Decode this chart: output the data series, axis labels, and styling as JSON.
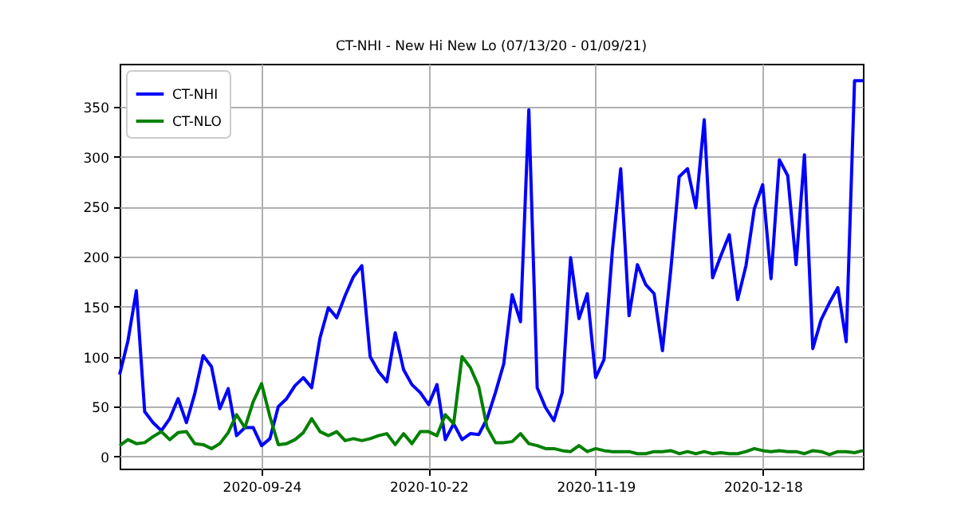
{
  "chart_data": {
    "type": "line",
    "title": "CT-NHI - New Hi New Lo (07/13/20 - 01/09/21)",
    "categories": [
      null,
      null,
      null,
      null,
      null,
      null,
      null,
      null,
      null,
      null,
      null,
      null,
      null,
      null,
      null,
      null,
      null,
      "2020-09-24",
      null,
      null,
      null,
      null,
      null,
      null,
      null,
      null,
      null,
      null,
      null,
      null,
      null,
      null,
      null,
      null,
      null,
      null,
      null,
      "2020-10-22",
      null,
      null,
      null,
      null,
      null,
      null,
      null,
      null,
      null,
      null,
      null,
      null,
      null,
      null,
      null,
      null,
      null,
      null,
      null,
      "2020-11-19",
      null,
      null,
      null,
      null,
      null,
      null,
      null,
      null,
      null,
      null,
      null,
      null,
      null,
      null,
      null,
      null,
      null,
      null,
      null,
      "2020-12-18",
      null,
      null,
      null,
      null,
      null,
      null,
      null,
      null,
      null,
      null,
      null,
      null
    ],
    "series": [
      {
        "name": "CT-NHI",
        "color": "#0000ff",
        "values": [
          82,
          116,
          166,
          45,
          34,
          26,
          38,
          58,
          34,
          63,
          101,
          90,
          48,
          68,
          21,
          29,
          29,
          11,
          18,
          50,
          58,
          71,
          79,
          69,
          119,
          149,
          139,
          161,
          180,
          191,
          100,
          85,
          75,
          124,
          87,
          72,
          64,
          52,
          72,
          17,
          33,
          17,
          23,
          22,
          38,
          64,
          93,
          162,
          135,
          347,
          69,
          49,
          36,
          64,
          199,
          138,
          163,
          79,
          97,
          206,
          288,
          141,
          192,
          172,
          163,
          106,
          187,
          280,
          288,
          249,
          337,
          179,
          201,
          222,
          157,
          191,
          248,
          272,
          178,
          297,
          281,
          192,
          302,
          108,
          137,
          154,
          169,
          115,
          376,
          376
        ]
      },
      {
        "name": "CT-NLO",
        "color": "#008000",
        "values": [
          11,
          17,
          13,
          14,
          20,
          25,
          17,
          24,
          25,
          13,
          12,
          8,
          13,
          24,
          42,
          29,
          55,
          73,
          40,
          12,
          13,
          17,
          24,
          38,
          25,
          21,
          25,
          16,
          18,
          16,
          18,
          21,
          23,
          12,
          23,
          13,
          25,
          25,
          21,
          42,
          33,
          100,
          89,
          70,
          29,
          14,
          14,
          15,
          23,
          13,
          11,
          8,
          8,
          6,
          5,
          11,
          5,
          8,
          6,
          5,
          5,
          5,
          3,
          3,
          5,
          5,
          6,
          3,
          5,
          3,
          5,
          3,
          4,
          3,
          3,
          5,
          8,
          6,
          5,
          6,
          5,
          5,
          3,
          6,
          5,
          2,
          5,
          5,
          4,
          6
        ]
      }
    ],
    "ylim": [
      -12,
      393
    ],
    "yticks": [
      0,
      50,
      100,
      150,
      200,
      250,
      300,
      350
    ],
    "grid": true,
    "legend": "top left",
    "line_style": "solid",
    "marker": "none"
  }
}
